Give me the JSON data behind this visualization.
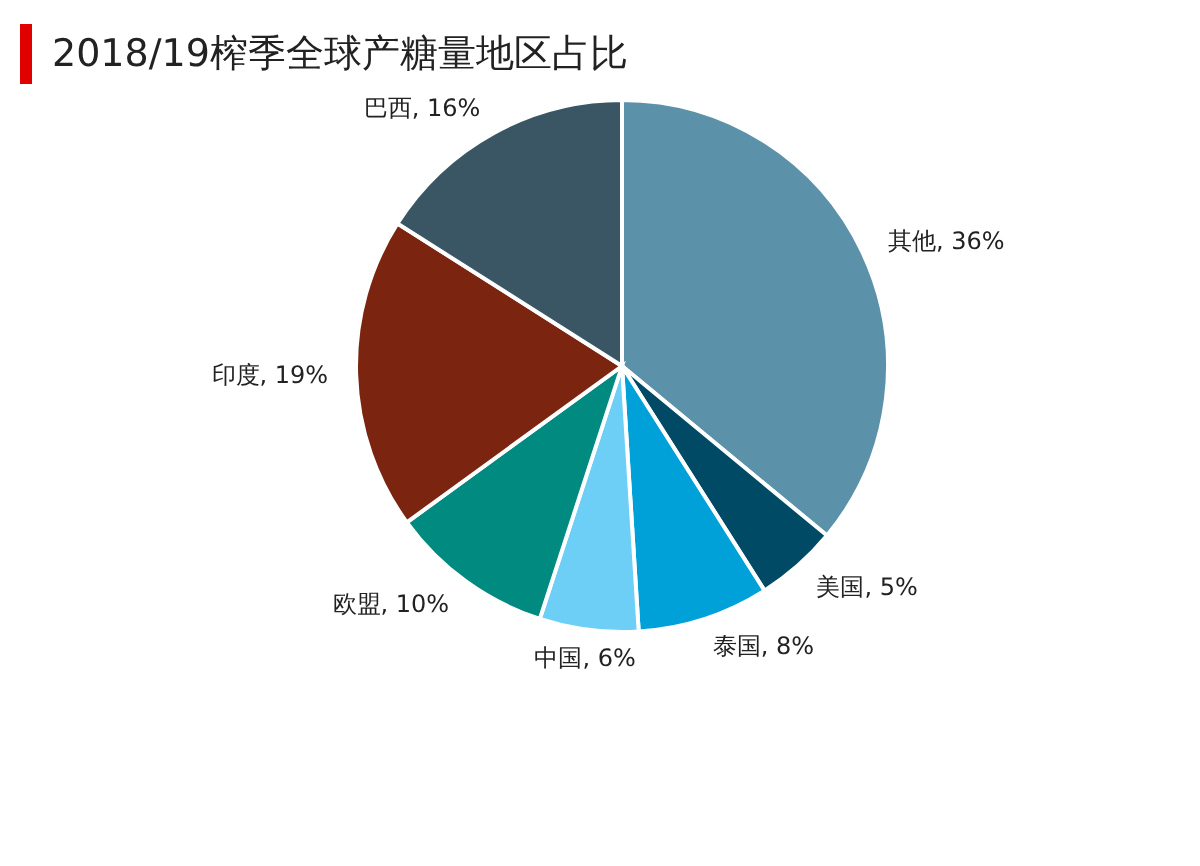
{
  "chart_data": {
    "type": "pie",
    "title": "2018/19榨季全球产糖量地区占比",
    "categories": [
      "其他",
      "美国",
      "泰国",
      "中国",
      "欧盟",
      "印度",
      "巴西"
    ],
    "values": [
      36,
      5,
      8,
      6,
      10,
      19,
      16
    ],
    "value_labels": [
      "36%",
      "5%",
      "8%",
      "6%",
      "10%",
      "19%",
      "16%"
    ],
    "colors": [
      "#5b91a9",
      "#004a66",
      "#00a0d9",
      "#6dcff6",
      "#008a80",
      "#7b2511",
      "#3a5664"
    ],
    "legend": false
  }
}
